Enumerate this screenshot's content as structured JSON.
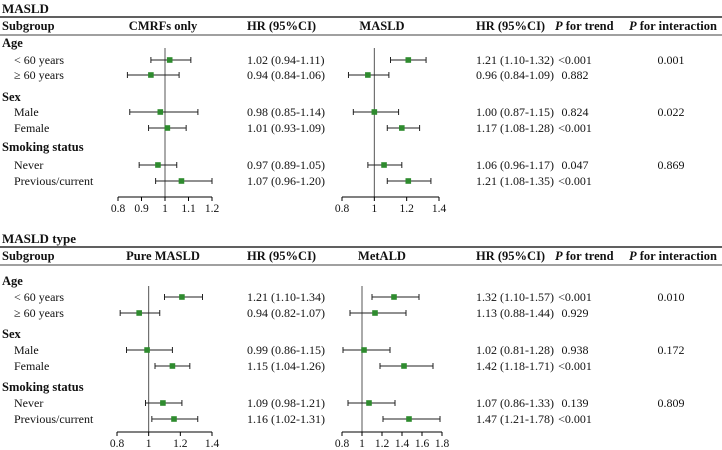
{
  "panels": [
    {
      "title": "MASLD",
      "headers": {
        "subgroup": "Subgroup",
        "plot1": "CMRFs only",
        "hr1": "HR (95%CI)",
        "plot2": "MASLD",
        "hr2": "HR (95%CI)",
        "p_trend": "P for trend",
        "p_trend_italic": "P",
        "p_trend_rest": " for trend",
        "p_inter_italic": "P",
        "p_inter_rest": " for interaction"
      },
      "axis1_ticks": [
        "0.8",
        "0.9",
        "1",
        "1.1",
        "1.2"
      ],
      "axis2_ticks": [
        "0.8",
        "1",
        "1.2",
        "1.4"
      ],
      "groups": [
        {
          "name": "Age",
          "p_interaction": "0.001",
          "rows": [
            {
              "label": "< 60 years",
              "hr1_text": "1.02 (0.94-1.11)",
              "hr2_text": "1.21 (1.10-1.32)",
              "p_trend": "<0.001"
            },
            {
              "label": "≥ 60 years",
              "hr1_text": "0.94 (0.84-1.06)",
              "hr2_text": "0.96 (0.84-1.09)",
              "p_trend": "0.882"
            }
          ]
        },
        {
          "name": "Sex",
          "p_interaction": "0.022",
          "rows": [
            {
              "label": "Male",
              "hr1_text": "0.98 (0.85-1.14)",
              "hr2_text": "1.00 (0.87-1.15)",
              "p_trend": "0.824"
            },
            {
              "label": "Female",
              "hr1_text": "1.01 (0.93-1.09)",
              "hr2_text": "1.17 (1.08-1.28)",
              "p_trend": "<0.001"
            }
          ]
        },
        {
          "name": "Smoking status",
          "p_interaction": "0.869",
          "rows": [
            {
              "label": "Never",
              "hr1_text": "0.97 (0.89-1.05)",
              "hr2_text": "1.06 (0.96-1.17)",
              "p_trend": "0.047"
            },
            {
              "label": "Previous/current",
              "hr1_text": "1.07 (0.96-1.20)",
              "hr2_text": "1.21 (1.08-1.35)",
              "p_trend": "<0.001"
            }
          ]
        }
      ]
    },
    {
      "title": "MASLD type",
      "headers": {
        "subgroup": "Subgroup",
        "plot1": "Pure MASLD",
        "hr1": "HR (95%CI)",
        "plot2": "MetALD",
        "hr2": "HR (95%CI)",
        "p_trend_italic": "P",
        "p_trend_rest": " for trend",
        "p_inter_italic": "P",
        "p_inter_rest": " for interaction"
      },
      "axis1_ticks": [
        "0.8",
        "1",
        "1.2",
        "1.4"
      ],
      "axis2_ticks": [
        "0.8",
        "1",
        "1.2",
        "1.4",
        "1.6",
        "1.8"
      ],
      "groups": [
        {
          "name": "Age",
          "p_interaction": "0.010",
          "rows": [
            {
              "label": "< 60 years",
              "hr1_text": "1.21 (1.10-1.34)",
              "hr2_text": "1.32 (1.10-1.57)",
              "p_trend": "<0.001"
            },
            {
              "label": "≥ 60 years",
              "hr1_text": "0.94 (0.82-1.07)",
              "hr2_text": "1.13 (0.88-1.44)",
              "p_trend": "0.929"
            }
          ]
        },
        {
          "name": "Sex",
          "p_interaction": "0.172",
          "rows": [
            {
              "label": "Male",
              "hr1_text": "0.99 (0.86-1.15)",
              "hr2_text": "1.02 (0.81-1.28)",
              "p_trend": "0.938"
            },
            {
              "label": "Female",
              "hr1_text": "1.15 (1.04-1.26)",
              "hr2_text": "1.42 (1.18-1.71)",
              "p_trend": "<0.001"
            }
          ]
        },
        {
          "name": "Smoking status",
          "p_interaction": "0.809",
          "rows": [
            {
              "label": "Never",
              "hr1_text": "1.09 (0.98-1.21)",
              "hr2_text": "1.07 (0.86-1.33)",
              "p_trend": "0.139"
            },
            {
              "label": "Previous/current",
              "hr1_text": "1.16 (1.02-1.31)",
              "hr2_text": "1.47 (1.21-1.78)",
              "p_trend": "<0.001"
            }
          ]
        }
      ]
    }
  ],
  "colors": {
    "marker": "#2e8b2e",
    "ci_line": "#222222",
    "ref_line": "#555555",
    "rule": "#000000"
  },
  "chart_data": [
    {
      "type": "forest",
      "title": "MASLD",
      "panels": [
        {
          "name": "CMRFs only",
          "xlim": [
            0.8,
            1.2
          ],
          "ticks": [
            0.8,
            0.9,
            1.0,
            1.1,
            1.2
          ],
          "reference": 1,
          "points": [
            {
              "group": "Age",
              "label": "< 60 years",
              "hr": 1.02,
              "lo": 0.94,
              "hi": 1.11
            },
            {
              "group": "Age",
              "label": "≥ 60 years",
              "hr": 0.94,
              "lo": 0.84,
              "hi": 1.06
            },
            {
              "group": "Sex",
              "label": "Male",
              "hr": 0.98,
              "lo": 0.85,
              "hi": 1.14
            },
            {
              "group": "Sex",
              "label": "Female",
              "hr": 1.01,
              "lo": 0.93,
              "hi": 1.09
            },
            {
              "group": "Smoking status",
              "label": "Never",
              "hr": 0.97,
              "lo": 0.89,
              "hi": 1.05
            },
            {
              "group": "Smoking status",
              "label": "Previous/current",
              "hr": 1.07,
              "lo": 0.96,
              "hi": 1.2
            }
          ]
        },
        {
          "name": "MASLD",
          "xlim": [
            0.8,
            1.4
          ],
          "ticks": [
            0.8,
            1.0,
            1.2,
            1.4
          ],
          "reference": 1,
          "points": [
            {
              "group": "Age",
              "label": "< 60 years",
              "hr": 1.21,
              "lo": 1.1,
              "hi": 1.32
            },
            {
              "group": "Age",
              "label": "≥ 60 years",
              "hr": 0.96,
              "lo": 0.84,
              "hi": 1.09
            },
            {
              "group": "Sex",
              "label": "Male",
              "hr": 1.0,
              "lo": 0.87,
              "hi": 1.15
            },
            {
              "group": "Sex",
              "label": "Female",
              "hr": 1.17,
              "lo": 1.08,
              "hi": 1.28
            },
            {
              "group": "Smoking status",
              "label": "Never",
              "hr": 1.06,
              "lo": 0.96,
              "hi": 1.17
            },
            {
              "group": "Smoking status",
              "label": "Previous/current",
              "hr": 1.21,
              "lo": 1.08,
              "hi": 1.35
            }
          ]
        }
      ]
    },
    {
      "type": "forest",
      "title": "MASLD type",
      "panels": [
        {
          "name": "Pure MASLD",
          "xlim": [
            0.8,
            1.4
          ],
          "ticks": [
            0.8,
            1.0,
            1.2,
            1.4
          ],
          "reference": 1,
          "points": [
            {
              "group": "Age",
              "label": "< 60 years",
              "hr": 1.21,
              "lo": 1.1,
              "hi": 1.34
            },
            {
              "group": "Age",
              "label": "≥ 60 years",
              "hr": 0.94,
              "lo": 0.82,
              "hi": 1.07
            },
            {
              "group": "Sex",
              "label": "Male",
              "hr": 0.99,
              "lo": 0.86,
              "hi": 1.15
            },
            {
              "group": "Sex",
              "label": "Female",
              "hr": 1.15,
              "lo": 1.04,
              "hi": 1.26
            },
            {
              "group": "Smoking status",
              "label": "Never",
              "hr": 1.09,
              "lo": 0.98,
              "hi": 1.21
            },
            {
              "group": "Smoking status",
              "label": "Previous/current",
              "hr": 1.16,
              "lo": 1.02,
              "hi": 1.31
            }
          ]
        },
        {
          "name": "MetALD",
          "xlim": [
            0.8,
            1.8
          ],
          "ticks": [
            0.8,
            1.0,
            1.2,
            1.4,
            1.6,
            1.8
          ],
          "reference": 1,
          "points": [
            {
              "group": "Age",
              "label": "< 60 years",
              "hr": 1.32,
              "lo": 1.1,
              "hi": 1.57
            },
            {
              "group": "Age",
              "label": "≥ 60 years",
              "hr": 1.13,
              "lo": 0.88,
              "hi": 1.44
            },
            {
              "group": "Sex",
              "label": "Male",
              "hr": 1.02,
              "lo": 0.81,
              "hi": 1.28
            },
            {
              "group": "Sex",
              "label": "Female",
              "hr": 1.42,
              "lo": 1.18,
              "hi": 1.71
            },
            {
              "group": "Smoking status",
              "label": "Never",
              "hr": 1.07,
              "lo": 0.86,
              "hi": 1.33
            },
            {
              "group": "Smoking status",
              "label": "Previous/current",
              "hr": 1.47,
              "lo": 1.21,
              "hi": 1.78
            }
          ]
        }
      ]
    }
  ]
}
